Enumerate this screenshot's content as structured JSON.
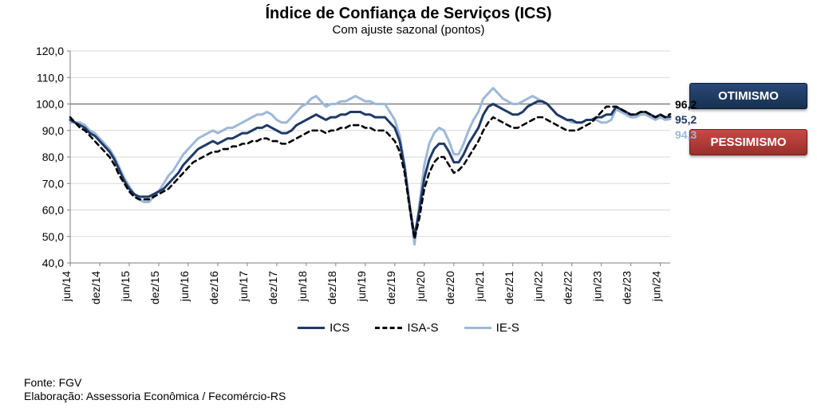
{
  "title": "Índice de Confiança de Serviços (ICS)",
  "subtitle": "Com ajuste sazonal (pontos)",
  "source_line1": "Fonte: FGV",
  "source_line2": "Elaboração: Assessoria Econômica / Fecomércio-RS",
  "badge_optimism": "OTIMISMO",
  "badge_pessimism": "PESSIMISMO",
  "legend": {
    "ics": "ICS",
    "isa": "ISA-S",
    "ie": "IE-S"
  },
  "chart": {
    "type": "line",
    "ylim": [
      40,
      120
    ],
    "ytick_step": 10,
    "yticks": [
      "40,0",
      "50,0",
      "60,0",
      "70,0",
      "80,0",
      "90,0",
      "100,0",
      "110,0",
      "120,0"
    ],
    "reference_line_y": 100,
    "grid_color": "#d9d9d9",
    "axis_color": "#7f7f7f",
    "background_color": "#ffffff",
    "tick_fontsize": 14,
    "xlabels": [
      "jun/14",
      "dez/14",
      "jun/15",
      "dez/15",
      "jun/16",
      "dez/16",
      "jun/17",
      "dez/17",
      "jun/18",
      "dez/18",
      "jun/19",
      "dez/19",
      "jun/20",
      "dez/20",
      "jun/21",
      "dez/21",
      "jun/22",
      "dez/22",
      "jun/23",
      "dez/23",
      "jun/24"
    ],
    "series": {
      "ics": {
        "label": "ICS",
        "color": "#1f3a68",
        "width": 3,
        "dash": "none",
        "end_label": "95,2",
        "end_label_color": "#1f3a68",
        "values": [
          94,
          93,
          92,
          91,
          89,
          88,
          86,
          84,
          82,
          79,
          75,
          71,
          68,
          66,
          65,
          65,
          65,
          66,
          67,
          68,
          70,
          72,
          74,
          77,
          79,
          81,
          83,
          84,
          85,
          86,
          85,
          86,
          87,
          87,
          88,
          89,
          89,
          90,
          91,
          91,
          92,
          91,
          90,
          89,
          89,
          90,
          92,
          93,
          94,
          95,
          96,
          95,
          94,
          95,
          95,
          96,
          96,
          97,
          97,
          97,
          96,
          96,
          95,
          95,
          95,
          93,
          91,
          86,
          76,
          62,
          50,
          60,
          72,
          79,
          83,
          85,
          85,
          82,
          78,
          78,
          81,
          85,
          88,
          91,
          96,
          99,
          100,
          99,
          98,
          97,
          96,
          96,
          97,
          99,
          100,
          101,
          101,
          100,
          98,
          96,
          95,
          94,
          94,
          93,
          93,
          94,
          94,
          95,
          95,
          96,
          96,
          99,
          98,
          97,
          96,
          96,
          97,
          97,
          96,
          95,
          96,
          95,
          95.2
        ]
      },
      "isa": {
        "label": "ISA-S",
        "color": "#000000",
        "width": 2.6,
        "dash": "6,5",
        "end_label": "96,2",
        "end_label_color": "#000000",
        "values": [
          95,
          93,
          91,
          90,
          88,
          86,
          84,
          82,
          80,
          77,
          73,
          70,
          67,
          65,
          64,
          64,
          64,
          65,
          66,
          67,
          68,
          70,
          72,
          74,
          76,
          78,
          79,
          80,
          81,
          82,
          82,
          83,
          83,
          84,
          84,
          85,
          85,
          86,
          86,
          87,
          87,
          86,
          86,
          85,
          85,
          86,
          87,
          88,
          89,
          90,
          90,
          90,
          89,
          90,
          90,
          91,
          91,
          92,
          92,
          92,
          91,
          91,
          90,
          90,
          90,
          88,
          86,
          82,
          74,
          61,
          49,
          57,
          68,
          74,
          78,
          80,
          80,
          77,
          74,
          75,
          77,
          80,
          83,
          86,
          90,
          93,
          95,
          94,
          93,
          92,
          91,
          91,
          92,
          93,
          94,
          95,
          95,
          94,
          93,
          92,
          91,
          90,
          90,
          90,
          91,
          92,
          93,
          95,
          97,
          99,
          99,
          99,
          98,
          97,
          96,
          96,
          97,
          97,
          96,
          95,
          96,
          95,
          96.2
        ]
      },
      "ie": {
        "label": "IE-S",
        "color": "#9db8d8",
        "width": 3,
        "dash": "none",
        "end_label": "94,3",
        "end_label_color": "#9db8d8",
        "values": [
          93,
          93,
          93,
          92,
          90,
          89,
          87,
          85,
          83,
          80,
          76,
          72,
          69,
          66,
          64,
          63,
          63,
          65,
          67,
          70,
          73,
          75,
          78,
          81,
          83,
          85,
          87,
          88,
          89,
          90,
          89,
          90,
          91,
          91,
          92,
          93,
          94,
          95,
          96,
          96,
          97,
          96,
          94,
          93,
          93,
          95,
          97,
          99,
          100,
          102,
          103,
          101,
          99,
          100,
          100,
          101,
          101,
          102,
          103,
          102,
          101,
          101,
          100,
          100,
          100,
          97,
          94,
          88,
          77,
          62,
          47,
          62,
          77,
          85,
          89,
          91,
          90,
          86,
          81,
          81,
          85,
          90,
          94,
          97,
          102,
          104,
          106,
          104,
          102,
          101,
          100,
          100,
          101,
          102,
          103,
          102,
          101,
          100,
          98,
          96,
          95,
          94,
          93,
          93,
          93,
          94,
          94,
          94,
          93,
          93,
          94,
          98,
          97,
          96,
          95,
          95,
          96,
          96,
          95,
          94,
          95,
          94,
          94.3
        ]
      }
    }
  }
}
